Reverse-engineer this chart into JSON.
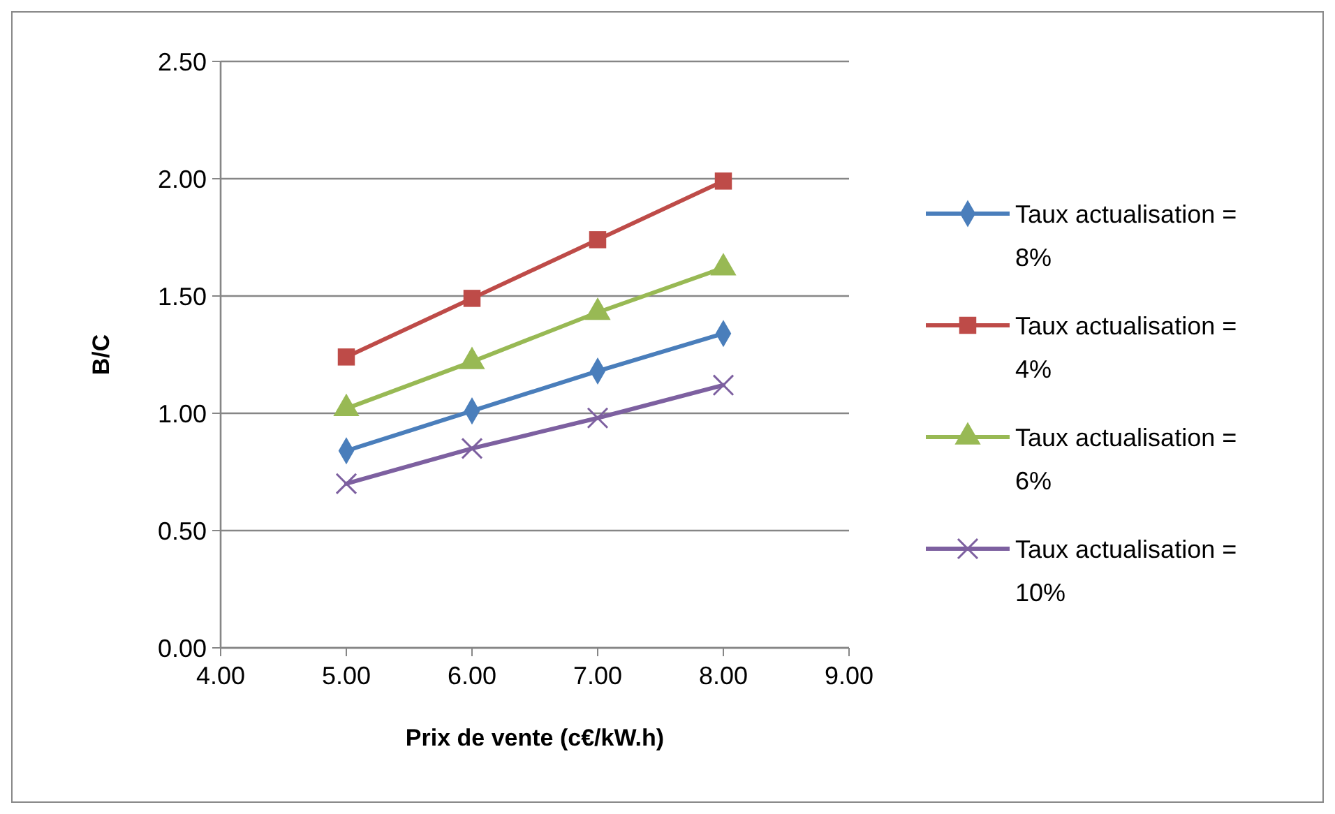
{
  "chart_data": {
    "type": "line",
    "xlabel": "Prix de vente (c€/kW.h)",
    "ylabel": "B/C",
    "x": [
      5,
      6,
      7,
      8
    ],
    "series": [
      {
        "name": "Taux actualisation = 8%",
        "color": "#4a7ebb",
        "marker": "diamond",
        "values": [
          0.84,
          1.01,
          1.18,
          1.34
        ]
      },
      {
        "name": "Taux actualisation = 4%",
        "color": "#be4b48",
        "marker": "square",
        "values": [
          1.24,
          1.49,
          1.74,
          1.99
        ]
      },
      {
        "name": "Taux actualisation = 6%",
        "color": "#98b954",
        "marker": "triangle",
        "values": [
          1.02,
          1.22,
          1.43,
          1.62
        ]
      },
      {
        "name": "Taux actualisation = 10%",
        "color": "#7d60a0",
        "marker": "cross",
        "values": [
          0.7,
          0.85,
          0.98,
          1.12
        ]
      }
    ],
    "xlim": [
      4,
      9
    ],
    "xticks": [
      {
        "value": 4,
        "label": "4.00"
      },
      {
        "value": 5,
        "label": "5.00"
      },
      {
        "value": 6,
        "label": "6.00"
      },
      {
        "value": 7,
        "label": "7.00"
      },
      {
        "value": 8,
        "label": "8.00"
      },
      {
        "value": 9,
        "label": "9.00"
      }
    ],
    "ylim": [
      0,
      2.5
    ],
    "yticks": [
      {
        "value": 0,
        "label": "0.00"
      },
      {
        "value": 0.5,
        "label": "0.50"
      },
      {
        "value": 1,
        "label": "1.00"
      },
      {
        "value": 1.5,
        "label": "1.50"
      },
      {
        "value": 2,
        "label": "2.00"
      },
      {
        "value": 2.5,
        "label": "2.50"
      }
    ],
    "grid": "y",
    "legend": "right",
    "line_style": "solid"
  }
}
